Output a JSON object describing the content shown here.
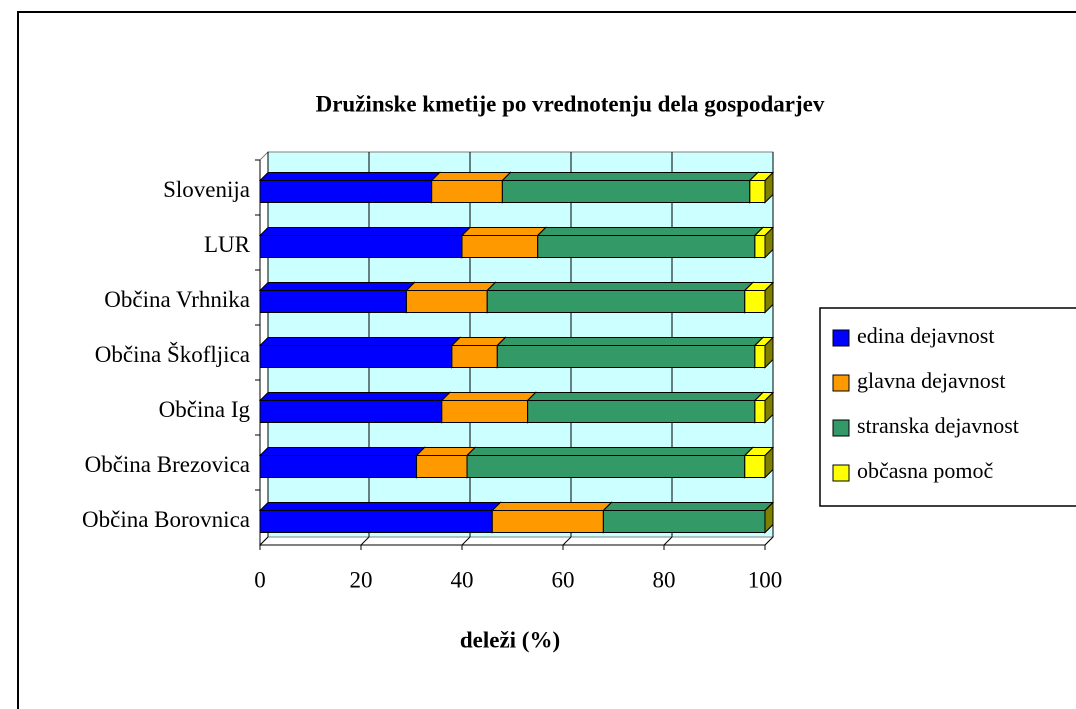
{
  "chart_data": {
    "type": "bar3d_stacked_horizontal",
    "title": "Družinske kmetije po vrednotenju dela gospodarjev",
    "xlabel": "deleži (%)",
    "categories": [
      "Slovenija",
      "LUR",
      "Občina Vrhnika",
      "Občina Škofljica",
      "Občina Ig",
      "Občina Brezovica",
      "Občina Borovnica"
    ],
    "series": [
      {
        "name": "edina dejavnost",
        "color": "#0000ff",
        "side": "#000080",
        "values": [
          34,
          40,
          29,
          38,
          36,
          31,
          46
        ]
      },
      {
        "name": "glavna dejavnost",
        "color": "#ff9900",
        "side": "#7f4c00",
        "values": [
          14,
          15,
          16,
          9,
          17,
          10,
          22
        ]
      },
      {
        "name": "stranska dejavnost",
        "color": "#339966",
        "side": "#1a4c33",
        "values": [
          49,
          43,
          51,
          51,
          45,
          55,
          32
        ]
      },
      {
        "name": "občasna pomoč",
        "color": "#ffff00",
        "side": "#808000",
        "values": [
          3,
          2,
          4,
          2,
          2,
          4,
          0
        ]
      }
    ],
    "xlim": [
      0,
      100
    ],
    "xticks": [
      0,
      20,
      40,
      60,
      80,
      100
    ],
    "grid": true,
    "legend": "right",
    "background": "#ccffff"
  }
}
